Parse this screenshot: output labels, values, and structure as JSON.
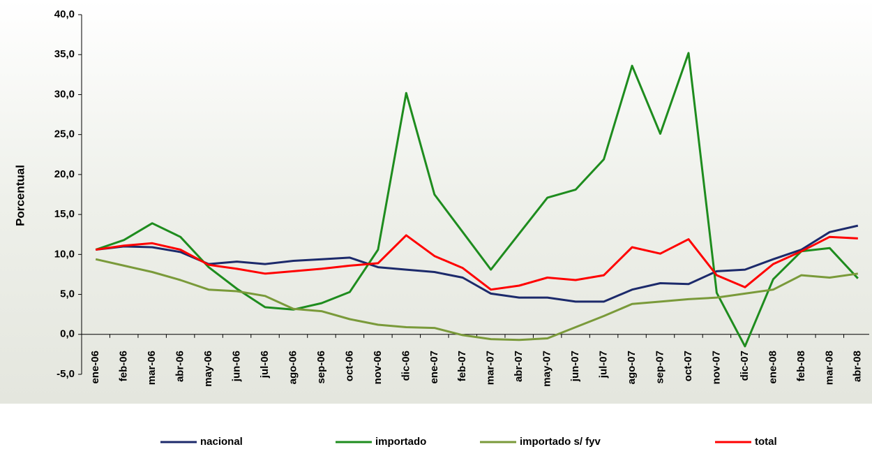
{
  "chart_data": {
    "type": "line",
    "y_label": "Porcentual",
    "categories": [
      "ene-06",
      "feb-06",
      "mar-06",
      "abr-06",
      "may-06",
      "jun-06",
      "jul-06",
      "ago-06",
      "sep-06",
      "oct-06",
      "nov-06",
      "dic-06",
      "ene-07",
      "feb-07",
      "mar-07",
      "abr-07",
      "may-07",
      "jun-07",
      "jul-07",
      "ago-07",
      "sep-07",
      "oct-07",
      "nov-07",
      "dic-07",
      "ene-08",
      "feb-08",
      "mar-08",
      "abr-08"
    ],
    "series": [
      {
        "name": "nacional",
        "color": "#1c2a6b",
        "values": [
          10.6,
          11.0,
          10.9,
          10.3,
          8.8,
          9.1,
          8.8,
          9.2,
          9.4,
          9.6,
          8.4,
          8.1,
          7.8,
          7.1,
          5.1,
          4.6,
          4.6,
          4.1,
          4.1,
          5.6,
          6.4,
          6.3,
          7.9,
          8.1,
          9.4,
          10.6,
          12.8,
          13.6
        ]
      },
      {
        "name": "importado",
        "color": "#1e8c1e",
        "values": [
          10.6,
          11.8,
          13.9,
          12.2,
          8.4,
          5.7,
          3.4,
          3.1,
          3.9,
          5.3,
          10.6,
          30.2,
          17.5,
          12.8,
          8.1,
          12.6,
          17.1,
          18.1,
          21.9,
          33.6,
          25.1,
          35.2,
          5.2,
          -1.5,
          6.9,
          10.4,
          10.8,
          7.0
        ]
      },
      {
        "name": "importado s/ fyv",
        "color": "#7a9a3a",
        "values": [
          9.4,
          8.6,
          7.8,
          6.8,
          5.6,
          5.4,
          4.8,
          3.2,
          2.9,
          1.9,
          1.2,
          0.9,
          0.8,
          -0.1,
          -0.6,
          -0.7,
          -0.5,
          0.9,
          2.3,
          3.8,
          4.1,
          4.4,
          4.6,
          5.1,
          5.6,
          7.4,
          7.1,
          7.6
        ]
      },
      {
        "name": "total",
        "color": "#ff0000",
        "values": [
          10.6,
          11.1,
          11.4,
          10.6,
          8.7,
          8.2,
          7.6,
          7.9,
          8.2,
          8.6,
          8.9,
          12.4,
          9.8,
          8.3,
          5.6,
          6.1,
          7.1,
          6.8,
          7.4,
          10.9,
          10.1,
          11.9,
          7.4,
          5.9,
          8.8,
          10.4,
          12.2,
          12.0
        ]
      }
    ],
    "ylim": [
      -5,
      40
    ],
    "yticks": [
      {
        "value": -5,
        "label": "-5,0"
      },
      {
        "value": 0,
        "label": "0,0"
      },
      {
        "value": 5,
        "label": "5,0"
      },
      {
        "value": 10,
        "label": "10,0"
      },
      {
        "value": 15,
        "label": "15,0"
      },
      {
        "value": 20,
        "label": "20,0"
      },
      {
        "value": 25,
        "label": "25,0"
      },
      {
        "value": 30,
        "label": "30,0"
      },
      {
        "value": 35,
        "label": "35,0"
      },
      {
        "value": 40,
        "label": "40,0"
      }
    ],
    "legend": "bottom"
  }
}
